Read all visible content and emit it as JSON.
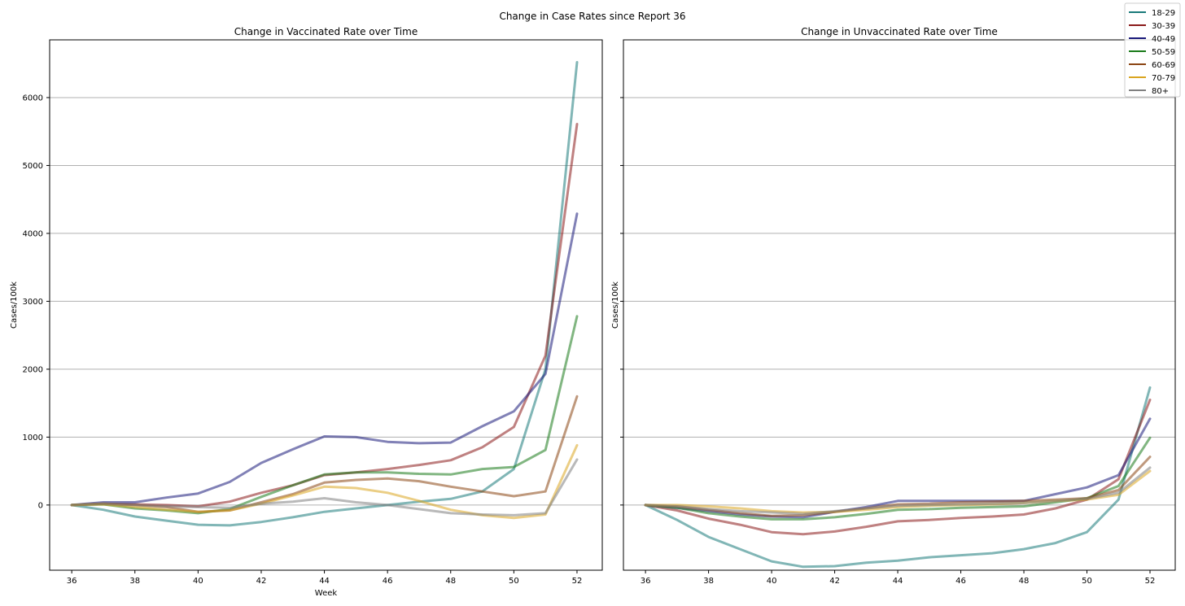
{
  "chart_data": {
    "type": "line",
    "title": "Change in Case Rates since Report 36",
    "legend": {
      "placement": "top-right",
      "entries": [
        "18-29",
        "30-39",
        "40-49",
        "50-59",
        "60-69",
        "70-79",
        "80+"
      ]
    },
    "x": [
      36,
      37,
      38,
      39,
      40,
      41,
      42,
      43,
      44,
      45,
      46,
      47,
      48,
      49,
      50,
      51,
      52
    ],
    "xticks": [
      36,
      38,
      40,
      42,
      44,
      46,
      48,
      50,
      52
    ],
    "xlim": [
      35.3,
      52.8
    ],
    "yticks": [
      0,
      1000,
      2000,
      3000,
      4000,
      5000,
      6000
    ],
    "ylim": [
      -960,
      6850
    ],
    "grid": "y",
    "series_styles": [
      {
        "name": "18-29",
        "color": "#1a7a7a"
      },
      {
        "name": "30-39",
        "color": "#8b1a1a"
      },
      {
        "name": "40-49",
        "color": "#1a1a7a"
      },
      {
        "name": "50-59",
        "color": "#1a7a1a"
      },
      {
        "name": "60-69",
        "color": "#8b4513"
      },
      {
        "name": "70-79",
        "color": "#daa520"
      },
      {
        "name": "80+",
        "color": "#808080"
      }
    ],
    "panels": [
      {
        "title": "Change in Vaccinated Rate over Time",
        "xlabel": "Week",
        "ylabel": "Cases/100k",
        "series": [
          {
            "name": "18-29",
            "values": [
              0,
              -70,
              -170,
              -230,
              -290,
              -300,
              -250,
              -180,
              -100,
              -50,
              0,
              50,
              90,
              200,
              530,
              2000,
              6520
            ]
          },
          {
            "name": "30-39",
            "values": [
              0,
              20,
              10,
              0,
              -20,
              50,
              180,
              290,
              440,
              480,
              530,
              590,
              660,
              850,
              1150,
              2200,
              5610
            ]
          },
          {
            "name": "40-49",
            "values": [
              0,
              40,
              40,
              110,
              170,
              340,
              620,
              820,
              1010,
              1000,
              930,
              910,
              920,
              1160,
              1380,
              1930,
              4290
            ]
          },
          {
            "name": "50-59",
            "values": [
              0,
              10,
              -50,
              -80,
              -120,
              -60,
              120,
              290,
              450,
              480,
              480,
              460,
              450,
              530,
              560,
              810,
              2780
            ]
          },
          {
            "name": "60-69",
            "values": [
              0,
              20,
              0,
              -30,
              -100,
              -80,
              40,
              160,
              330,
              370,
              390,
              350,
              270,
              200,
              130,
              200,
              1600
            ]
          },
          {
            "name": "70-79",
            "values": [
              0,
              10,
              -30,
              -70,
              -100,
              -80,
              20,
              140,
              270,
              250,
              180,
              60,
              -70,
              -150,
              -190,
              -140,
              880
            ]
          },
          {
            "name": "80+",
            "values": [
              0,
              20,
              0,
              -20,
              -30,
              -40,
              20,
              50,
              100,
              40,
              0,
              -60,
              -120,
              -140,
              -150,
              -120,
              670
            ]
          }
        ]
      },
      {
        "title": "Change in Unvaccinated Rate over Time",
        "xlabel": "",
        "ylabel": "Cases/100k",
        "series": [
          {
            "name": "18-29",
            "values": [
              0,
              -220,
              -470,
              -650,
              -830,
              -910,
              -900,
              -850,
              -820,
              -770,
              -740,
              -710,
              -650,
              -560,
              -400,
              80,
              1730
            ]
          },
          {
            "name": "30-39",
            "values": [
              0,
              -80,
              -200,
              -290,
              -400,
              -430,
              -390,
              -320,
              -240,
              -220,
              -190,
              -170,
              -140,
              -50,
              80,
              380,
              1550
            ]
          },
          {
            "name": "40-49",
            "values": [
              0,
              -40,
              -90,
              -140,
              -170,
              -180,
              -100,
              -30,
              60,
              60,
              60,
              60,
              60,
              160,
              260,
              440,
              1270
            ]
          },
          {
            "name": "50-59",
            "values": [
              0,
              -40,
              -120,
              -170,
              -210,
              -210,
              -180,
              -130,
              -70,
              -60,
              -40,
              -30,
              -20,
              40,
              100,
              280,
              990
            ]
          },
          {
            "name": "60-69",
            "values": [
              0,
              -20,
              -70,
              -120,
              -160,
              -150,
              -100,
              -50,
              10,
              20,
              40,
              50,
              60,
              80,
              100,
              220,
              710
            ]
          },
          {
            "name": "70-79",
            "values": [
              0,
              0,
              -20,
              -50,
              -90,
              -110,
              -100,
              -70,
              -30,
              -10,
              0,
              10,
              30,
              60,
              80,
              150,
              500
            ]
          },
          {
            "name": "80+",
            "values": [
              0,
              -20,
              -60,
              -90,
              -110,
              -130,
              -90,
              -50,
              -10,
              0,
              10,
              20,
              30,
              60,
              90,
              180,
              550
            ]
          }
        ]
      }
    ]
  }
}
